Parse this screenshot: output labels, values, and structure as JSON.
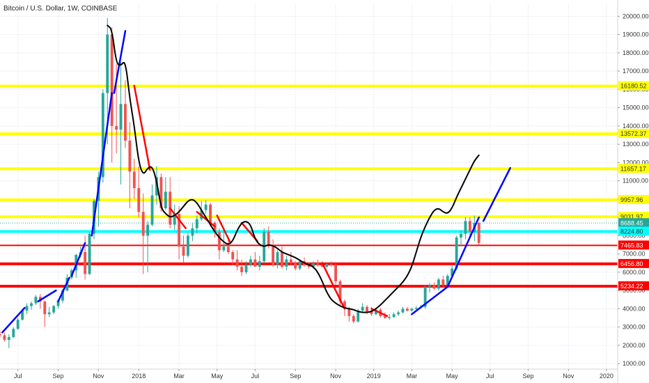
{
  "chart_data": {
    "type": "candlestick",
    "title": "Bitcoin / U.S. Dollar, 1W, COINBASE",
    "yaxis": {
      "ticks": [
        "1000.00",
        "2000.00",
        "3000.00",
        "4000.00",
        "5000.00",
        "6000.00",
        "7000.00",
        "8000.00",
        "9000.00",
        "10000.00",
        "11000.00",
        "12000.00",
        "13000.00",
        "14000.00",
        "15000.00",
        "16000.00",
        "17000.00",
        "18000.00",
        "19000.00",
        "20000.00"
      ],
      "tick_values": [
        1000,
        2000,
        3000,
        4000,
        5000,
        6000,
        7000,
        8000,
        9000,
        10000,
        11000,
        12000,
        13000,
        14000,
        15000,
        16000,
        17000,
        18000,
        19000,
        20000
      ],
      "ylim": [
        700,
        20700
      ]
    },
    "xaxis": {
      "ticks": [
        "Jul",
        "Sep",
        "Nov",
        "2018",
        "Mar",
        "May",
        "Jul",
        "Sep",
        "Nov",
        "2019",
        "Mar",
        "May",
        "Jul",
        "Sep",
        "Nov",
        "2020"
      ],
      "tick_weeks": [
        0,
        9,
        18,
        27,
        36,
        44.5,
        53,
        62,
        71,
        79.5,
        88,
        97,
        105.5,
        114,
        123,
        131.5
      ],
      "xlim": [
        -4,
        134
      ]
    },
    "levels": [
      {
        "value": 16180.52,
        "label": "16180.52",
        "line_color": "#ffff00",
        "label_bg": "#ffff00",
        "label_color": "#333333",
        "thick": true
      },
      {
        "value": 13572.37,
        "label": "13572.37",
        "line_color": "#ffff00",
        "label_bg": "#ffff00",
        "label_color": "#333333",
        "thick": true
      },
      {
        "value": 11657.17,
        "label": "11657.17",
        "line_color": "#ffff00",
        "label_bg": "#ffff00",
        "label_color": "#333333",
        "thick": true
      },
      {
        "value": 9957.96,
        "label": "9957.96",
        "line_color": "#ffff00",
        "label_bg": "#ffff00",
        "label_color": "#333333",
        "thick": true
      },
      {
        "value": 9031.97,
        "label": "9031.97",
        "line_color": "#ffff00",
        "label_bg": "#ffff00",
        "label_color": "#333333",
        "thick": true
      },
      {
        "value": 8688.45,
        "label": "8688.45",
        "line_color": "#26a69a",
        "label_bg": "#26a69a",
        "label_color": "#ffffff",
        "thick": false
      },
      {
        "value": 8224.8,
        "label": "8224.80",
        "line_color": "#00ffff",
        "label_bg": "#00ffff",
        "label_color": "#333333",
        "thick": true
      },
      {
        "value": 7465.83,
        "label": "7465.83",
        "line_color": "#ff0000",
        "label_bg": "#ff0000",
        "label_color": "#ffffff",
        "thick": false
      },
      {
        "value": 6456.8,
        "label": "6456.80",
        "line_color": "#ff0000",
        "label_bg": "#ff0000",
        "label_color": "#ffffff",
        "thick": true
      },
      {
        "value": 5234.22,
        "label": "5234.22",
        "line_color": "#ff0000",
        "label_bg": "#ff0000",
        "label_color": "#ffffff",
        "thick": true
      }
    ],
    "colors": {
      "up": "#26a69a",
      "down": "#ef5350",
      "blue_trend": "#0000ff",
      "red_trend": "#ff0000",
      "curve": "#000000",
      "grid": "#f0f3fa"
    },
    "candles": [
      [
        2600,
        2800,
        2450,
        2550
      ],
      [
        2550,
        2700,
        2200,
        2300
      ],
      [
        2300,
        2600,
        1850,
        2450
      ],
      [
        2450,
        3000,
        2400,
        2900
      ],
      [
        2900,
        3500,
        2850,
        3400
      ],
      [
        3400,
        4000,
        3350,
        3900
      ],
      [
        3900,
        4300,
        3700,
        4150
      ],
      [
        4150,
        4400,
        3950,
        4300
      ],
      [
        4300,
        4750,
        4200,
        4650
      ],
      [
        4650,
        4800,
        4000,
        4400
      ],
      [
        4400,
        4450,
        3000,
        3700
      ],
      [
        3700,
        4100,
        3550,
        3800
      ],
      [
        3800,
        4200,
        3700,
        4150
      ],
      [
        4150,
        4500,
        4000,
        4450
      ],
      [
        4450,
        5100,
        4300,
        5000
      ],
      [
        5000,
        5900,
        4950,
        5700
      ],
      [
        5700,
        6200,
        5600,
        6100
      ],
      [
        6100,
        7000,
        5700,
        6950
      ],
      [
        6950,
        7400,
        6800,
        7100
      ],
      [
        7100,
        8000,
        5600,
        5900
      ],
      [
        5900,
        8200,
        5850,
        8100
      ],
      [
        8100,
        10000,
        7800,
        9900
      ],
      [
        9900,
        11500,
        8500,
        11200
      ],
      [
        11200,
        16000,
        10900,
        15800
      ],
      [
        15800,
        19900,
        13000,
        19000
      ],
      [
        19000,
        19400,
        12000,
        14000
      ],
      [
        14000,
        17400,
        12500,
        13800
      ],
      [
        13800,
        17500,
        10800,
        15200
      ],
      [
        15200,
        16500,
        12800,
        13200
      ],
      [
        13200,
        14200,
        9500,
        11500
      ],
      [
        11500,
        12200,
        10000,
        10600
      ],
      [
        10600,
        11800,
        9000,
        9300
      ],
      [
        9300,
        10300,
        5900,
        8000
      ],
      [
        8000,
        8800,
        6000,
        8600
      ],
      [
        8600,
        10800,
        8500,
        10200
      ],
      [
        10200,
        11800,
        9700,
        11200
      ],
      [
        11200,
        11400,
        9300,
        9500
      ],
      [
        9500,
        11200,
        9400,
        10400
      ],
      [
        10400,
        11200,
        8400,
        8600
      ],
      [
        8600,
        9700,
        8300,
        9200
      ],
      [
        9200,
        9600,
        6700,
        7400
      ],
      [
        7400,
        8000,
        6500,
        6900
      ],
      [
        6900,
        8200,
        6800,
        8000
      ],
      [
        8000,
        8700,
        7700,
        8400
      ],
      [
        8400,
        9100,
        8100,
        8900
      ],
      [
        8900,
        9900,
        8800,
        9400
      ],
      [
        9400,
        9950,
        9200,
        9700
      ],
      [
        9700,
        9800,
        8500,
        8700
      ],
      [
        8700,
        8800,
        7900,
        8200
      ],
      [
        8200,
        8400,
        6700,
        7200
      ],
      [
        7200,
        8300,
        7100,
        7400
      ],
      [
        7400,
        7800,
        7000,
        7100
      ],
      [
        7100,
        7200,
        6400,
        6700
      ],
      [
        6700,
        7200,
        6100,
        6300
      ],
      [
        6300,
        6700,
        5800,
        6000
      ],
      [
        6000,
        6600,
        5900,
        6400
      ],
      [
        6400,
        6900,
        6300,
        6700
      ],
      [
        6700,
        7100,
        6500,
        6300
      ],
      [
        6300,
        6900,
        6100,
        6600
      ],
      [
        6600,
        8400,
        6500,
        8200
      ],
      [
        8200,
        8500,
        7300,
        7500
      ],
      [
        7500,
        7800,
        6300,
        6400
      ],
      [
        6400,
        7200,
        6200,
        7100
      ],
      [
        7100,
        7400,
        6200,
        6300
      ],
      [
        6300,
        6900,
        6100,
        6700
      ],
      [
        6700,
        7100,
        6400,
        6500
      ],
      [
        6500,
        6600,
        6100,
        6200
      ],
      [
        6200,
        6700,
        6100,
        6600
      ],
      [
        6600,
        6800,
        6300,
        6400
      ],
      [
        6400,
        6500,
        6200,
        6300
      ],
      [
        6300,
        6600,
        6200,
        6500
      ],
      [
        6500,
        6700,
        6300,
        6400
      ],
      [
        6400,
        6600,
        6250,
        6300
      ],
      [
        6300,
        6500,
        6200,
        6450
      ],
      [
        6450,
        6600,
        6300,
        6400
      ],
      [
        6400,
        6500,
        5300,
        5500
      ],
      [
        5500,
        5600,
        4200,
        4400
      ],
      [
        4400,
        4500,
        3600,
        4000
      ],
      [
        4000,
        4100,
        3300,
        3600
      ],
      [
        3600,
        3700,
        3200,
        3300
      ],
      [
        3300,
        4000,
        3250,
        3900
      ],
      [
        3900,
        4300,
        3800,
        4100
      ],
      [
        4100,
        4200,
        3700,
        3850
      ],
      [
        3850,
        4100,
        3600,
        3700
      ],
      [
        3700,
        4000,
        3650,
        3950
      ],
      [
        3950,
        4050,
        3500,
        3600
      ],
      [
        3600,
        3800,
        3450,
        3500
      ],
      [
        3500,
        3700,
        3400,
        3550
      ],
      [
        3550,
        3800,
        3500,
        3700
      ],
      [
        3700,
        3900,
        3600,
        3800
      ],
      [
        3800,
        4100,
        3750,
        4000
      ],
      [
        4000,
        4100,
        3850,
        3900
      ],
      [
        3900,
        4050,
        3850,
        4000
      ],
      [
        4000,
        4150,
        3900,
        4050
      ],
      [
        4050,
        4200,
        4000,
        4100
      ],
      [
        4100,
        5300,
        4000,
        5200
      ],
      [
        5200,
        5400,
        4900,
        5300
      ],
      [
        5300,
        5450,
        5050,
        5100
      ],
      [
        5100,
        5700,
        5000,
        5600
      ],
      [
        5600,
        5800,
        5200,
        5300
      ],
      [
        5300,
        5900,
        5200,
        5800
      ],
      [
        5800,
        6400,
        5700,
        6200
      ],
      [
        6200,
        8000,
        6100,
        7900
      ],
      [
        7900,
        8300,
        7400,
        8100
      ],
      [
        8100,
        9000,
        7800,
        8800
      ],
      [
        8800,
        9000,
        7900,
        8200
      ],
      [
        8200,
        9100,
        7700,
        8700
      ],
      [
        8700,
        8750,
        7500,
        7600
      ]
    ],
    "black_curve": [
      [
        24,
        19500
      ],
      [
        25,
        19300
      ],
      [
        26,
        17400
      ],
      [
        27,
        17300
      ],
      [
        28,
        17600
      ],
      [
        29,
        15500
      ],
      [
        30,
        14000
      ],
      [
        31,
        12000
      ],
      [
        32,
        11300
      ],
      [
        33,
        11700
      ],
      [
        34,
        11800
      ],
      [
        35,
        11000
      ],
      [
        36,
        9500
      ],
      [
        37,
        9200
      ],
      [
        38,
        9000
      ],
      [
        39,
        9100
      ],
      [
        40,
        9300
      ],
      [
        41,
        9600
      ],
      [
        42,
        9900
      ],
      [
        43,
        10000
      ],
      [
        44,
        9800
      ],
      [
        45,
        9400
      ],
      [
        46,
        9000
      ],
      [
        47,
        8600
      ],
      [
        48,
        8200
      ],
      [
        49,
        7900
      ],
      [
        50,
        7650
      ],
      [
        51,
        7500
      ],
      [
        52,
        7700
      ],
      [
        53,
        8300
      ],
      [
        54,
        8700
      ],
      [
        55,
        8800
      ],
      [
        56,
        8600
      ],
      [
        57,
        7800
      ],
      [
        58,
        7500
      ],
      [
        59,
        7400
      ],
      [
        60,
        7500
      ],
      [
        61,
        7450
      ],
      [
        62,
        7300
      ],
      [
        63,
        7100
      ],
      [
        64,
        7000
      ],
      [
        65,
        6900
      ],
      [
        66,
        6800
      ],
      [
        67,
        6650
      ],
      [
        68,
        6500
      ],
      [
        69,
        6400
      ],
      [
        70,
        6300
      ],
      [
        71,
        6000
      ],
      [
        72,
        5500
      ],
      [
        73,
        4900
      ],
      [
        74,
        4500
      ],
      [
        75,
        4300
      ],
      [
        76,
        4150
      ],
      [
        77,
        4050
      ],
      [
        78,
        4000
      ],
      [
        79,
        3950
      ],
      [
        80,
        3850
      ],
      [
        81,
        3800
      ],
      [
        82,
        3800
      ],
      [
        83,
        3850
      ],
      [
        84,
        4000
      ],
      [
        85,
        4200
      ],
      [
        86,
        4450
      ],
      [
        87,
        4700
      ],
      [
        88,
        4950
      ],
      [
        89,
        5200
      ],
      [
        90,
        5450
      ],
      [
        91,
        5800
      ],
      [
        92,
        6300
      ],
      [
        93,
        7100
      ],
      [
        94,
        7900
      ],
      [
        95,
        8500
      ],
      [
        96,
        9000
      ],
      [
        97,
        9400
      ],
      [
        98,
        9500
      ],
      [
        99,
        9300
      ],
      [
        100,
        9200
      ],
      [
        101,
        9500
      ],
      [
        102,
        10100
      ],
      [
        103,
        10600
      ],
      [
        104,
        11100
      ],
      [
        105,
        11600
      ],
      [
        106,
        12100
      ],
      [
        107,
        12400
      ]
    ],
    "blue_trendlines": [
      [
        [
          -3.5,
          2700
        ],
        [
          1.5,
          4050
        ]
      ],
      [
        [
          4.5,
          4400
        ],
        [
          8.5,
          5000
        ]
      ],
      [
        [
          9,
          4400
        ],
        [
          11.5,
          5700
        ]
      ],
      [
        [
          12,
          5800
        ],
        [
          15,
          7600
        ]
      ],
      [
        [
          16.5,
          8000
        ],
        [
          21,
          15800
        ]
      ],
      [
        [
          21.5,
          15800
        ],
        [
          24,
          19200
        ]
      ],
      [
        [
          88,
          3700
        ],
        [
          96,
          5200
        ]
      ],
      [
        [
          96,
          5200
        ],
        [
          103,
          9000
        ]
      ],
      [
        [
          104,
          8800
        ],
        [
          110,
          11700
        ]
      ]
    ],
    "red_trendlines": [
      [
        [
          26,
          16200
        ],
        [
          29.5,
          11600
        ]
      ],
      [
        [
          34,
          9500
        ],
        [
          37.5,
          8400
        ]
      ],
      [
        [
          40,
          9300
        ],
        [
          44,
          8500
        ]
      ],
      [
        [
          44.5,
          9100
        ],
        [
          47.5,
          7600
        ]
      ],
      [
        [
          50,
          8700
        ],
        [
          53.5,
          7700
        ]
      ],
      [
        [
          68,
          6500
        ],
        [
          73,
          4000
        ]
      ],
      [
        [
          79,
          4000
        ],
        [
          82.5,
          3600
        ]
      ]
    ]
  }
}
